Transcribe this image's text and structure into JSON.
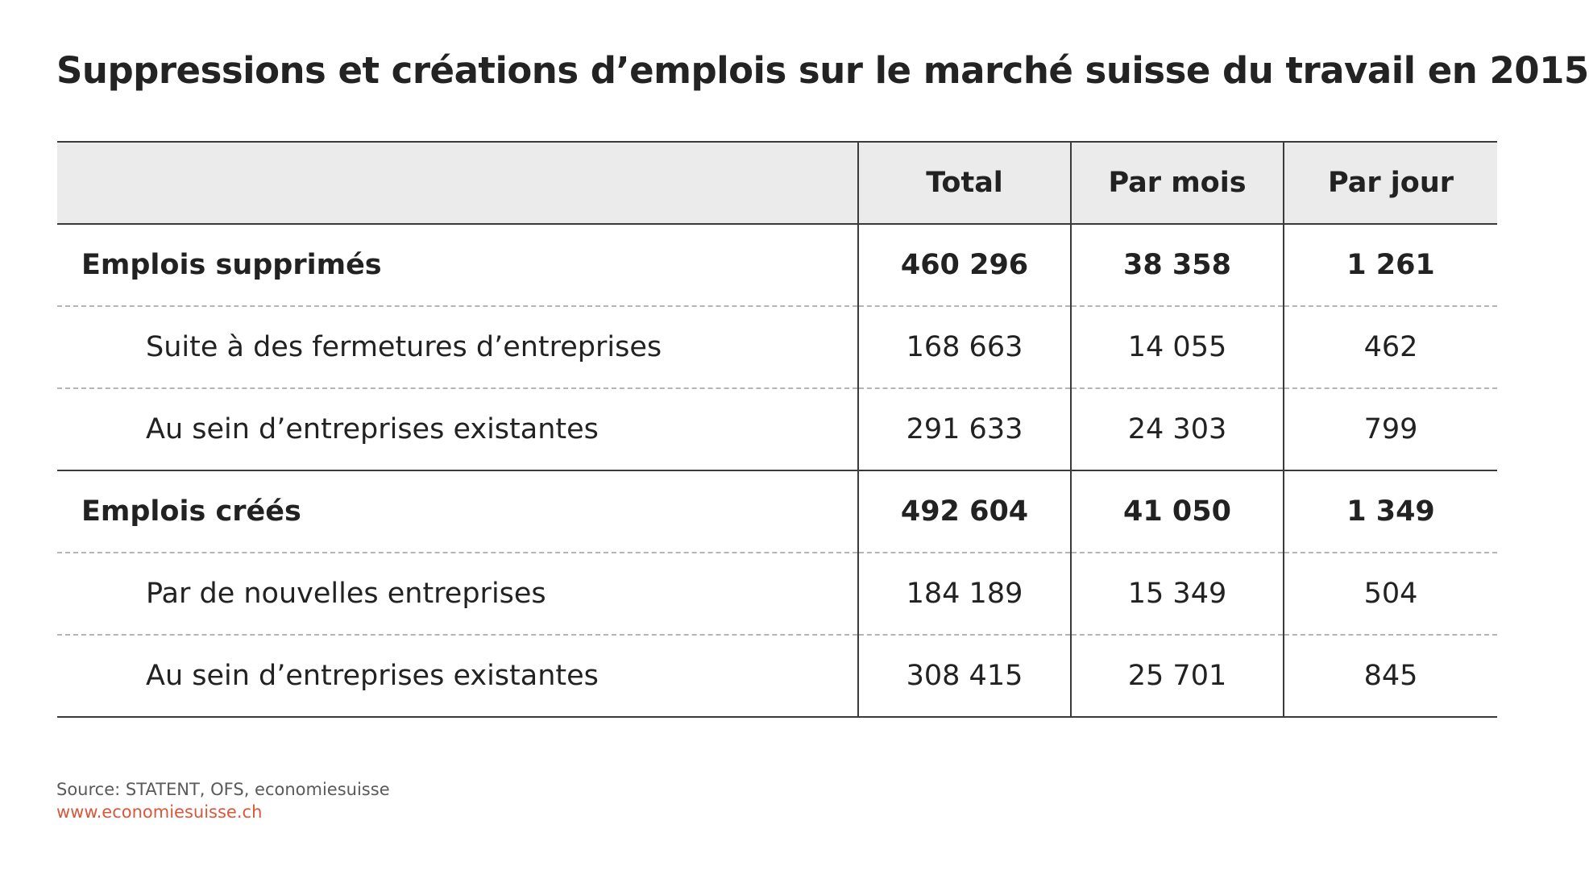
{
  "title": "Suppressions et créations d’emplois sur le marché suisse du travail en 2015",
  "table": {
    "headers": [
      "",
      "Total",
      "Par mois",
      "Par jour"
    ],
    "groups": [
      {
        "label": "Emplois supprimés",
        "values": [
          "460 296",
          "38 358",
          "1 261"
        ],
        "rows": [
          {
            "label": "Suite à des fermetures d’entreprises",
            "values": [
              "168 663",
              "14 055",
              "462"
            ]
          },
          {
            "label": "Au sein d’entreprises existantes",
            "values": [
              "291 633",
              "24 303",
              "799"
            ]
          }
        ]
      },
      {
        "label": "Emplois créés",
        "values": [
          "492 604",
          "41 050",
          "1 349"
        ],
        "rows": [
          {
            "label": "Par de nouvelles entreprises",
            "values": [
              "184 189",
              "15 349",
              "504"
            ]
          },
          {
            "label": "Au sein d’entreprises existantes",
            "values": [
              "308 415",
              "25 701",
              "845"
            ]
          }
        ]
      }
    ]
  },
  "source": "Source: STATENT, OFS, economiesuisse",
  "url": "www.economiesuisse.ch",
  "colors": {
    "header_background": "#ebebeb",
    "text": "#222222",
    "url": "#d9573a",
    "rule": "#3a3a3a",
    "dashed_rule": "#b5b5b5"
  }
}
